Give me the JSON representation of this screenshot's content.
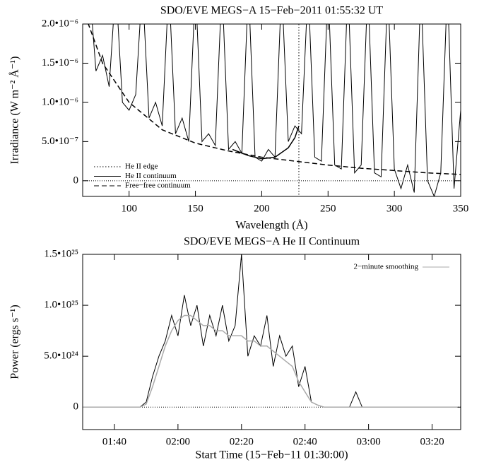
{
  "chart_data": [
    {
      "type": "line",
      "title": "SDO/EVE MEGS−A 15−Feb−2011 01:55:32 UT",
      "x_label": "Wavelength (Å)",
      "y_label": "Irradiance (W m⁻² Å⁻¹)",
      "xlim": [
        65,
        350
      ],
      "ylim": [
        -2e-07,
        2e-06
      ],
      "xticks": [
        100,
        150,
        200,
        250,
        300,
        350
      ],
      "yticks": [
        0,
        {
          "value": 5e-07,
          "label": "5.0•10⁻⁷"
        },
        {
          "value": 1e-06,
          "label": "1.0•10⁻⁶"
        },
        {
          "value": 1.5e-06,
          "label": "1.5•10⁻⁶"
        },
        {
          "value": 2e-06,
          "label": "2.0•10⁻⁶"
        }
      ],
      "zero_line": true,
      "legend": "lower left",
      "vlines": [
        {
          "name": "He II edge",
          "x": 228,
          "color": "#000",
          "dash": "dotted"
        }
      ],
      "series": [
        {
          "color": "#000",
          "dash": "solid",
          "x": [
            65,
            70,
            75,
            80,
            85,
            90,
            95,
            100,
            105,
            110,
            115,
            120,
            125,
            130,
            135,
            140,
            145,
            150,
            155,
            160,
            165,
            170,
            175,
            180,
            185,
            190,
            195,
            200,
            205,
            210,
            215,
            220,
            225,
            230,
            235,
            240,
            245,
            250,
            255,
            260,
            265,
            270,
            275,
            280,
            285,
            290,
            295,
            300,
            305,
            310,
            315,
            320,
            325,
            330,
            335,
            340,
            345,
            350
          ],
          "values": [
            2e-06,
            2.5e-06,
            1.4e-06,
            1.6e-06,
            1.2e-06,
            2.5e-06,
            1e-06,
            9e-07,
            1.1e-06,
            2.5e-06,
            8e-07,
            1e-06,
            7e-07,
            2.5e-06,
            6e-07,
            8e-07,
            5e-07,
            2.5e-06,
            5e-07,
            6e-07,
            4.5e-07,
            2.5e-06,
            4e-07,
            5e-07,
            3.5e-07,
            2.5e-06,
            3e-07,
            2.5e-07,
            4e-07,
            3e-07,
            2.5e-06,
            5e-07,
            7e-07,
            6e-07,
            2.5e-06,
            3e-07,
            2.5e-07,
            2.5e-06,
            2e-07,
            1.5e-07,
            2.5e-06,
            1e-07,
            2e-07,
            2.5e-06,
            1e-07,
            5e-08,
            2.5e-06,
            1.5e-07,
            -1e-07,
            2e-07,
            -1.5e-07,
            2.5e-06,
            0,
            -2e-07,
            1e-07,
            2.5e-06,
            -1e-07,
            9e-07
          ]
        },
        {
          "name": "He II continuum",
          "color": "#000",
          "dash": "solid",
          "x": [
            178,
            190,
            200,
            210,
            220,
            225,
            228
          ],
          "values": [
            4e-07,
            3.2e-07,
            2.8e-07,
            3e-07,
            4.2e-07,
            5.5e-07,
            7e-07
          ]
        },
        {
          "name": "Free−free continuum",
          "color": "#000",
          "dash": "dashed",
          "x": [
            65,
            80,
            100,
            125,
            150,
            175,
            200,
            225,
            250,
            275,
            300,
            325,
            350
          ],
          "values": [
            2.2e-06,
            1.5e-06,
            1e-06,
            6.5e-07,
            4.8e-07,
            3.8e-07,
            3e-07,
            2.5e-07,
            2e-07,
            1.6e-07,
            1.3e-07,
            1e-07,
            8e-08
          ]
        }
      ]
    },
    {
      "type": "line",
      "title": "SDO/EVE MEGS−A He II Continuum",
      "x_label": "Start Time (15−Feb−11 01:30:00)",
      "y_label": "Power (ergs s⁻¹)",
      "xlim": [
        0,
        119
      ],
      "ylim": [
        -2.2e+24,
        1.5e+25
      ],
      "xticks": [
        {
          "value": 10,
          "label": "01:40"
        },
        {
          "value": 30,
          "label": "02:00"
        },
        {
          "value": 50,
          "label": "02:20"
        },
        {
          "value": 70,
          "label": "02:40"
        },
        {
          "value": 90,
          "label": "03:00"
        },
        {
          "value": 110,
          "label": "03:20"
        }
      ],
      "yticks": [
        0,
        {
          "value": 5e+24,
          "label": "5.0•10²⁴"
        },
        {
          "value": 1e+25,
          "label": "1.0•10²⁵"
        },
        {
          "value": 1.5e+25,
          "label": "1.5•10²⁵"
        }
      ],
      "zero_line": true,
      "legend": "upper right",
      "vlines": [],
      "series": [
        {
          "color": "#000",
          "dash": "solid",
          "x": [
            0,
            2,
            4,
            6,
            8,
            10,
            12,
            14,
            16,
            18,
            20,
            22,
            24,
            26,
            28,
            30,
            32,
            34,
            36,
            38,
            40,
            42,
            44,
            46,
            48,
            50,
            52,
            54,
            56,
            58,
            60,
            62,
            64,
            66,
            68,
            70,
            72,
            74,
            76,
            78,
            80,
            82,
            84,
            86,
            88,
            90,
            92,
            94,
            96,
            98,
            100,
            102,
            104,
            106,
            108,
            110,
            112,
            114,
            116,
            118
          ],
          "values": [
            0,
            0,
            0,
            0,
            0,
            0,
            0,
            0,
            0,
            0,
            5e+23,
            3e+24,
            5e+24,
            6.5e+24,
            9e+24,
            7e+24,
            1.1e+25,
            8e+24,
            1e+25,
            6e+24,
            9e+24,
            7e+24,
            1e+25,
            6.5e+24,
            8e+24,
            1.5e+25,
            5e+24,
            7e+24,
            6e+24,
            9e+24,
            4e+24,
            7e+24,
            5e+24,
            6e+24,
            2e+24,
            4e+24,
            5e+23,
            2e+23,
            0,
            0,
            0,
            0,
            0,
            1.5e+24,
            0,
            0,
            0,
            0,
            0,
            0,
            0,
            0,
            0,
            0,
            0,
            0,
            0,
            0,
            0,
            0
          ]
        },
        {
          "name": "2−minute smoothing",
          "color": "#aaaaaa",
          "dash": "solid",
          "x": [
            0,
            18,
            20,
            22,
            24,
            26,
            28,
            30,
            32,
            34,
            36,
            38,
            40,
            42,
            44,
            46,
            48,
            50,
            52,
            54,
            56,
            58,
            60,
            62,
            64,
            66,
            68,
            70,
            72,
            74,
            76,
            118
          ],
          "values": [
            0,
            0,
            3e+23,
            2e+24,
            4e+24,
            6e+24,
            7.5e+24,
            8.5e+24,
            9e+24,
            9e+24,
            8.5e+24,
            8e+24,
            8e+24,
            7.5e+24,
            7.5e+24,
            7e+24,
            7e+24,
            7e+24,
            6.5e+24,
            6.5e+24,
            6e+24,
            6e+24,
            5.5e+24,
            5e+24,
            4.5e+24,
            4e+24,
            2.5e+24,
            1.5e+24,
            5e+23,
            2e+23,
            0,
            0
          ]
        }
      ]
    }
  ]
}
